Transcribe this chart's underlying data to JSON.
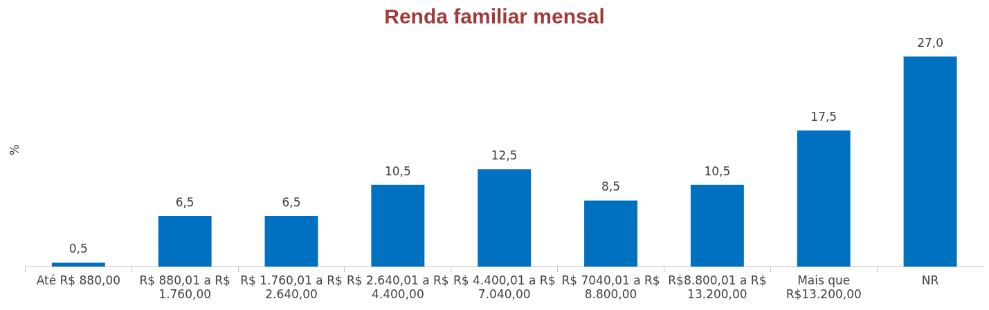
{
  "chart_data": {
    "type": "bar",
    "title": "Renda familiar mensal",
    "ylabel": "%",
    "categories": [
      "Até R$ 880,00",
      "R$ 880,01 a R$ 1.760,00",
      "R$ 1.760,01 a R$ 2.640,00",
      "R$ 2.640,01 a R$ 4.400,00",
      "R$ 4.400,01 a R$ 7.040,00",
      "R$ 7040,01 a R$ 8.800,00",
      "R$8.800,01 a R$ 13.200,00",
      "Mais que R$13.200,00",
      "NR"
    ],
    "values": [
      0.5,
      6.5,
      6.5,
      10.5,
      12.5,
      8.5,
      10.5,
      17.5,
      27.0
    ],
    "value_labels": [
      "0,5",
      "6,5",
      "6,5",
      "10,5",
      "12,5",
      "8,5",
      "10,5",
      "17,5",
      "27,0"
    ],
    "color": "#0070c0",
    "grid": false,
    "legend": false,
    "tick_labels": "x"
  }
}
